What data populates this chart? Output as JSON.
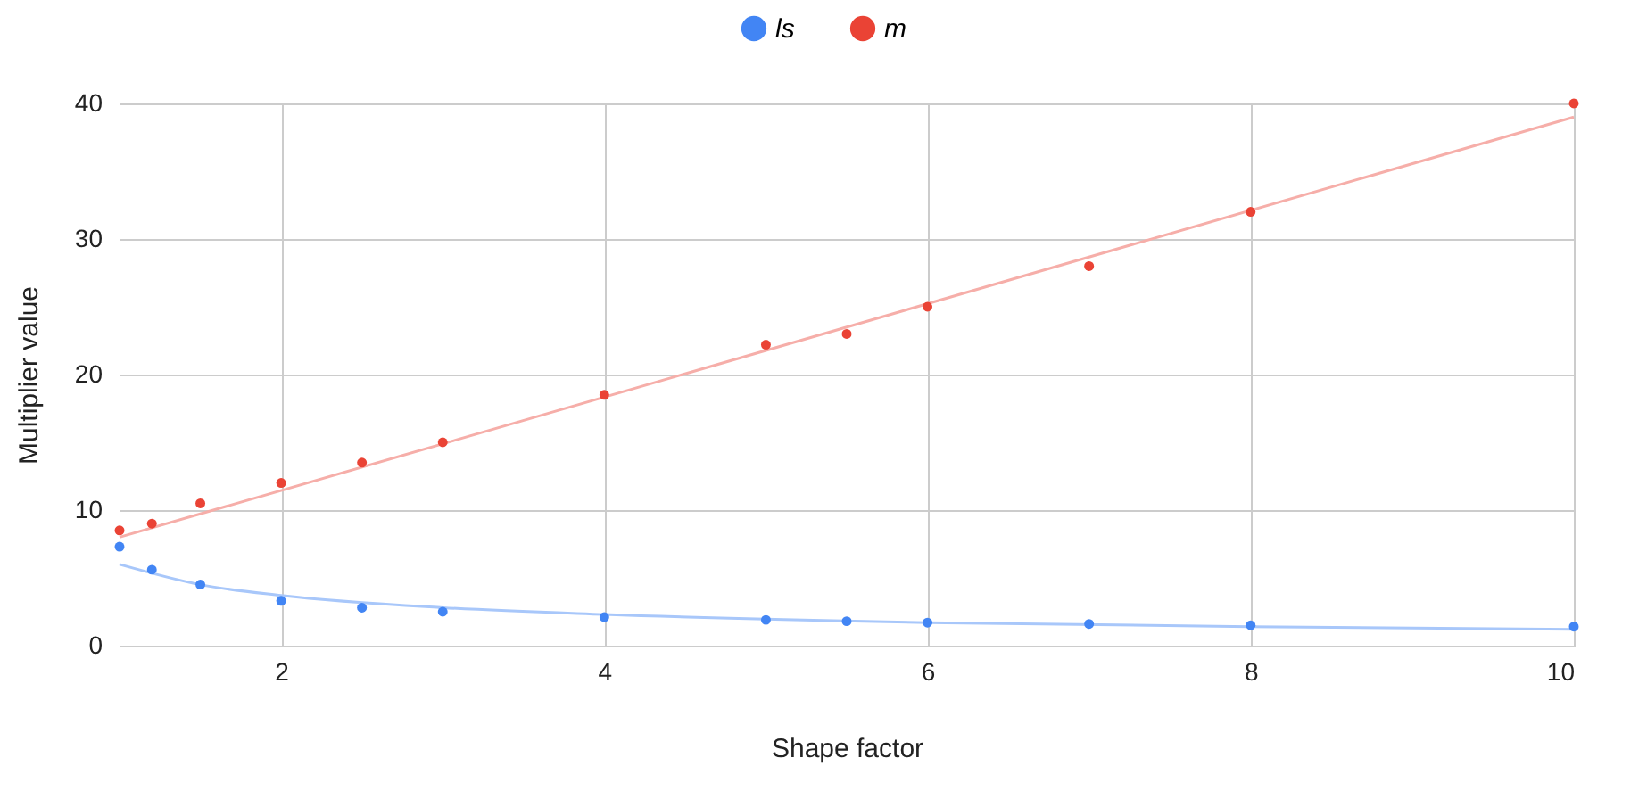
{
  "chart_data": {
    "type": "scatter",
    "xlabel": "Shape factor",
    "ylabel": "Multiplier value",
    "x": [
      1,
      1.2,
      1.5,
      2,
      2.5,
      3,
      4,
      5,
      5.5,
      6,
      7,
      8,
      10
    ],
    "series": [
      {
        "name": "ls",
        "color": "#4285f4",
        "values": [
          7.3,
          5.6,
          4.5,
          3.3,
          2.8,
          2.5,
          2.1,
          1.9,
          1.8,
          1.7,
          1.6,
          1.5,
          1.4
        ]
      },
      {
        "name": "m",
        "color": "#ea4335",
        "values": [
          8.5,
          9,
          10.5,
          12,
          13.5,
          15,
          18.5,
          22.2,
          23,
          25,
          28,
          32,
          40
        ]
      },
      {
        "type": "line",
        "marker": "none",
        "color": "#a8c7fa",
        "x": [
          1,
          1.5,
          2,
          3,
          4,
          6,
          8,
          10
        ],
        "values": [
          6,
          4.5,
          3.7,
          2.8,
          2.3,
          1.7,
          1.4,
          1.2
        ]
      },
      {
        "type": "line",
        "marker": "none",
        "color": "#f6aea9",
        "x": [
          1,
          10
        ],
        "values": [
          8,
          39
        ]
      }
    ],
    "xlim": [
      1,
      10
    ],
    "xticks": [
      2,
      4,
      6,
      8,
      10
    ],
    "ylim": [
      0,
      40
    ],
    "yticks": [
      0,
      10,
      20,
      30,
      40
    ],
    "grid": true,
    "legend": "top",
    "marker": "circle"
  }
}
